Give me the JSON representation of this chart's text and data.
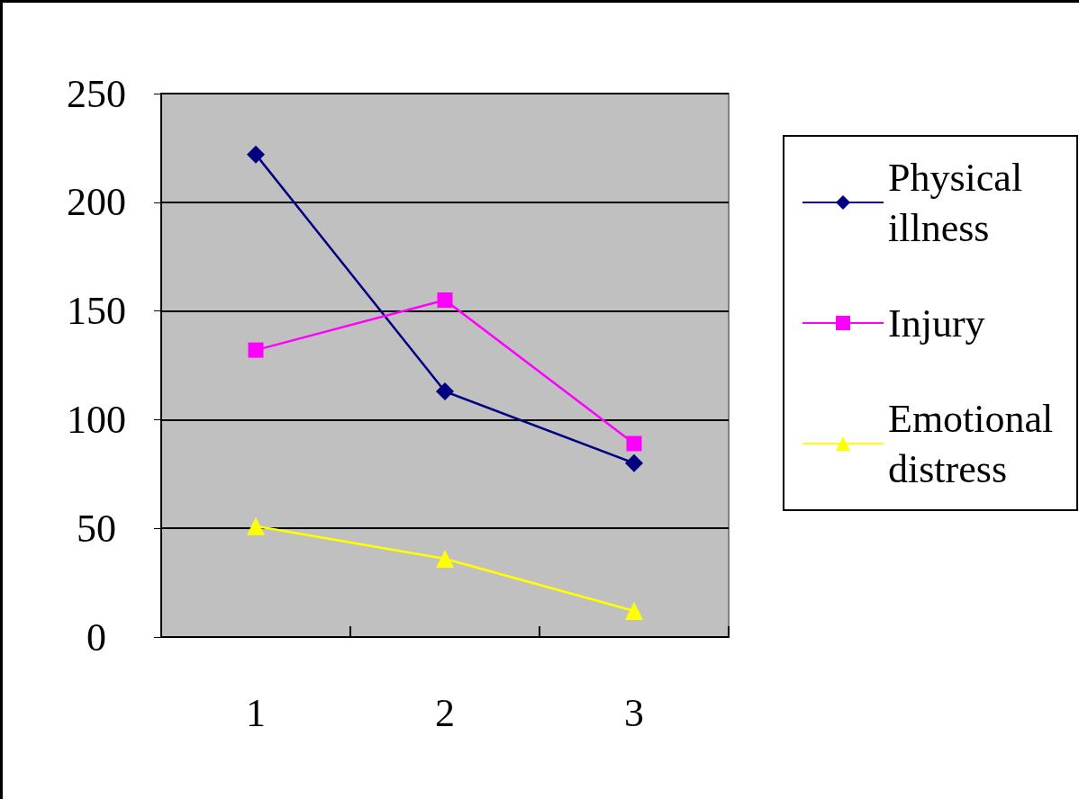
{
  "chart_data": {
    "type": "line",
    "categories": [
      "1",
      "2",
      "3"
    ],
    "series": [
      {
        "name": "Physical illness",
        "color": "#000080",
        "marker": "diamond",
        "values": [
          222,
          113,
          80
        ]
      },
      {
        "name": "Injury",
        "color": "#ff00ff",
        "marker": "square",
        "values": [
          132,
          155,
          89
        ]
      },
      {
        "name": "Emotional distress",
        "color": "#ffff00",
        "marker": "triangle",
        "values": [
          51,
          36,
          12
        ]
      }
    ],
    "ylim": [
      0,
      250
    ],
    "yticks": [
      0,
      50,
      100,
      150,
      200,
      250
    ],
    "grid": "y",
    "legend": "right",
    "line_style": "solid"
  }
}
